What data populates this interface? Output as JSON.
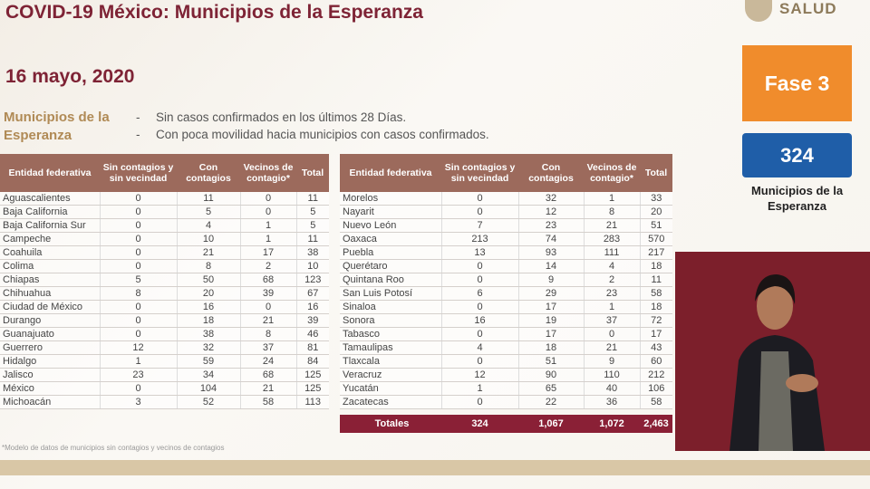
{
  "header": {
    "title": "COVID-19 México: Municipios de la Esperanza",
    "logo": "SALUD"
  },
  "date": "16 mayo, 2020",
  "intro": {
    "label": "Municipios de la Esperanza",
    "bullets": [
      "Sin casos confirmados en los últimos 28 Días.",
      "Con poca movilidad hacia municipios con casos confirmados."
    ]
  },
  "columns": [
    "Entidad federativa",
    "Sin contagios y sin vecindad",
    "Con contagios",
    "Vecinos de contagio*",
    "Total"
  ],
  "tables": [
    {
      "rows": [
        [
          "Aguascalientes",
          0,
          11,
          0,
          11
        ],
        [
          "Baja California",
          0,
          5,
          0,
          5
        ],
        [
          "Baja California Sur",
          0,
          4,
          1,
          5
        ],
        [
          "Campeche",
          0,
          10,
          1,
          11
        ],
        [
          "Coahuila",
          0,
          21,
          17,
          38
        ],
        [
          "Colima",
          0,
          8,
          2,
          10
        ],
        [
          "Chiapas",
          5,
          50,
          68,
          123
        ],
        [
          "Chihuahua",
          8,
          20,
          39,
          67
        ],
        [
          "Ciudad de México",
          0,
          16,
          0,
          16
        ],
        [
          "Durango",
          0,
          18,
          21,
          39
        ],
        [
          "Guanajuato",
          0,
          38,
          8,
          46
        ],
        [
          "Guerrero",
          12,
          32,
          37,
          81
        ],
        [
          "Hidalgo",
          1,
          59,
          24,
          84
        ],
        [
          "Jalisco",
          23,
          34,
          68,
          125
        ],
        [
          "México",
          0,
          104,
          21,
          125
        ],
        [
          "Michoacán",
          3,
          52,
          58,
          113
        ]
      ]
    },
    {
      "rows": [
        [
          "Morelos",
          0,
          32,
          1,
          33
        ],
        [
          "Nayarit",
          0,
          12,
          8,
          20
        ],
        [
          "Nuevo León",
          7,
          23,
          21,
          51
        ],
        [
          "Oaxaca",
          213,
          74,
          283,
          570
        ],
        [
          "Puebla",
          13,
          93,
          111,
          217
        ],
        [
          "Querétaro",
          0,
          14,
          4,
          18
        ],
        [
          "Quintana Roo",
          0,
          9,
          2,
          11
        ],
        [
          "San Luis Potosí",
          6,
          29,
          23,
          58
        ],
        [
          "Sinaloa",
          0,
          17,
          1,
          18
        ],
        [
          "Sonora",
          16,
          19,
          37,
          72
        ],
        [
          "Tabasco",
          0,
          17,
          0,
          17
        ],
        [
          "Tamaulipas",
          4,
          18,
          21,
          43
        ],
        [
          "Tlaxcala",
          0,
          51,
          9,
          60
        ],
        [
          "Veracruz",
          12,
          90,
          110,
          212
        ],
        [
          "Yucatán",
          1,
          65,
          40,
          106
        ],
        [
          "Zacatecas",
          0,
          22,
          36,
          58
        ]
      ],
      "totals": [
        "Totales",
        324,
        "1,067",
        "1,072",
        "2,463"
      ]
    }
  ],
  "side": {
    "phase": "Fase 3",
    "count": 324,
    "caption": "Municipios de la Esperanza"
  },
  "footnote": "*Modelo de datos de municipios sin contagios y vecinos de contagios"
}
